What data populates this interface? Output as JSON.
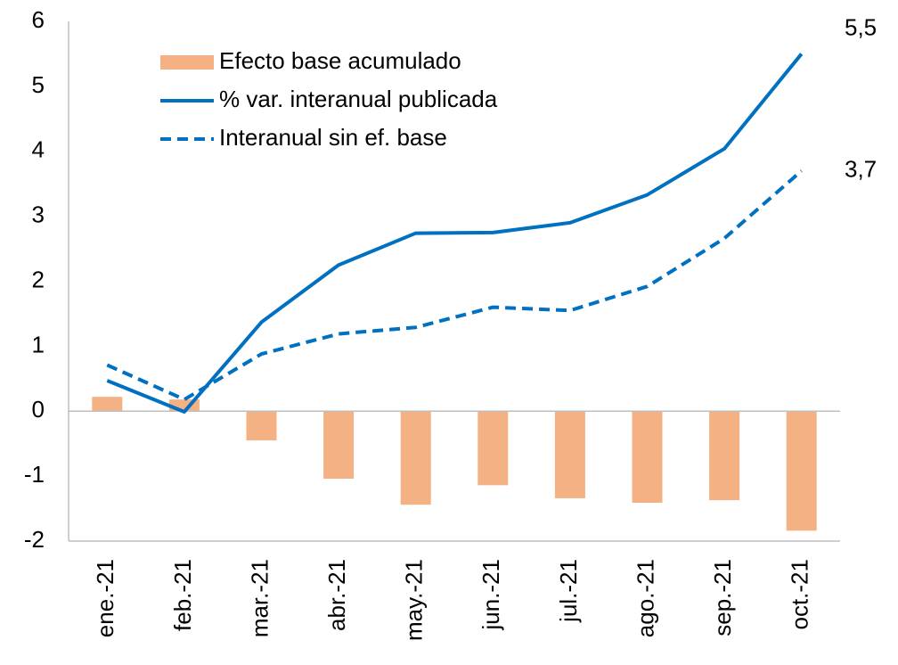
{
  "chart_data": {
    "type": "bar_line",
    "categories": [
      "ene.-21",
      "feb.-21",
      "mar.-21",
      "abr.-21",
      "may.-21",
      "jun.-21",
      "jul.-21",
      "ago.-21",
      "sep.-21",
      "oct.-21"
    ],
    "series": [
      {
        "name": "Efecto base acumulado",
        "type": "bar",
        "color": "#f4b183",
        "values": [
          0.22,
          0.18,
          -0.45,
          -1.04,
          -1.44,
          -1.14,
          -1.34,
          -1.41,
          -1.37,
          -1.84
        ]
      },
      {
        "name": "% var. interanual publicada",
        "type": "line",
        "dash": false,
        "color": "#0070c0",
        "values": [
          0.47,
          -0.01,
          1.37,
          2.25,
          2.74,
          2.75,
          2.9,
          3.33,
          4.04,
          5.5
        ],
        "value_labels": [
          null,
          null,
          null,
          null,
          null,
          null,
          null,
          null,
          null,
          "5,5"
        ]
      },
      {
        "name": "Interanual sin ef. base",
        "type": "line",
        "dash": true,
        "color": "#0070c0",
        "values": [
          0.71,
          0.18,
          0.88,
          1.19,
          1.29,
          1.6,
          1.55,
          1.92,
          2.66,
          3.7
        ],
        "value_labels": [
          null,
          null,
          null,
          null,
          null,
          null,
          null,
          null,
          null,
          "3,7"
        ]
      }
    ],
    "ylim": [
      -2,
      6
    ],
    "yticks": [
      -2,
      -1,
      0,
      1,
      2,
      3,
      4,
      5,
      6
    ],
    "legend": "top-left"
  }
}
